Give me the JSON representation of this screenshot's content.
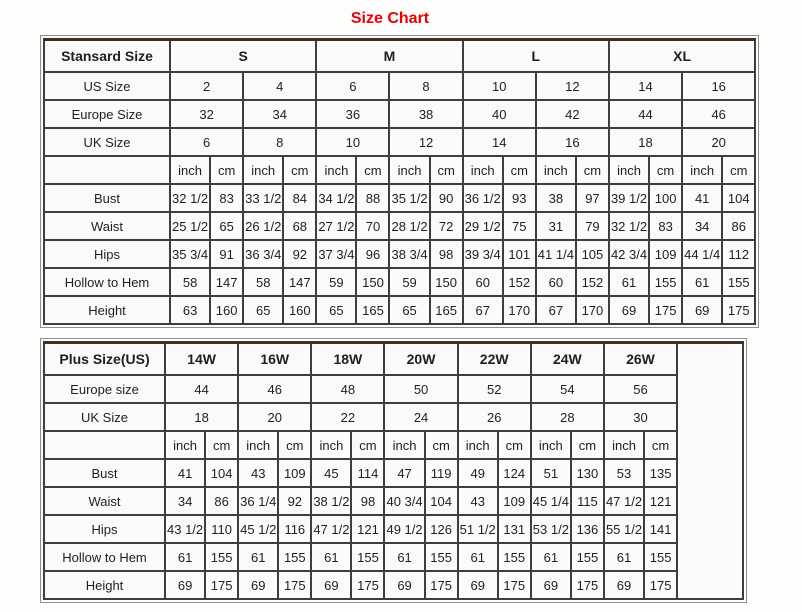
{
  "page": {
    "title": "Size Chart",
    "title_color": "#ee0000",
    "border_color": "#3e3e3e"
  },
  "tables": [
    {
      "name": "standard-size-table",
      "corner_label": "Stansard Size",
      "groups": [
        {
          "label": "S",
          "span": 2
        },
        {
          "label": "M",
          "span": 2
        },
        {
          "label": "L",
          "span": 2
        },
        {
          "label": "XL",
          "span": 2
        }
      ],
      "size_rows": [
        {
          "label": "US Size",
          "bold": true,
          "values": [
            "2",
            "4",
            "6",
            "8",
            "10",
            "12",
            "14",
            "16"
          ]
        },
        {
          "label": "Europe Size",
          "bold": false,
          "values": [
            "32",
            "34",
            "36",
            "38",
            "40",
            "42",
            "44",
            "46"
          ]
        },
        {
          "label": "UK Size",
          "bold": false,
          "values": [
            "6",
            "8",
            "10",
            "12",
            "14",
            "16",
            "18",
            "20"
          ]
        }
      ],
      "units": [
        "inch",
        "cm"
      ],
      "pairs": 8,
      "measure_rows": [
        {
          "label": "Bust",
          "values": [
            "32 1/2",
            "83",
            "33 1/2",
            "84",
            "34 1/2",
            "88",
            "35 1/2",
            "90",
            "36 1/2",
            "93",
            "38",
            "97",
            "39 1/2",
            "100",
            "41",
            "104"
          ]
        },
        {
          "label": "Waist",
          "values": [
            "25 1/2",
            "65",
            "26 1/2",
            "68",
            "27 1/2",
            "70",
            "28 1/2",
            "72",
            "29 1/2",
            "75",
            "31",
            "79",
            "32 1/2",
            "83",
            "34",
            "86"
          ]
        },
        {
          "label": "Hips",
          "values": [
            "35 3/4",
            "91",
            "36 3/4",
            "92",
            "37 3/4",
            "96",
            "38 3/4",
            "98",
            "39 3/4",
            "101",
            "41 1/4",
            "105",
            "42 3/4",
            "109",
            "44 1/4",
            "112"
          ]
        },
        {
          "label": "Hollow to Hem",
          "values": [
            "58",
            "147",
            "58",
            "147",
            "59",
            "150",
            "59",
            "150",
            "60",
            "152",
            "60",
            "152",
            "61",
            "155",
            "61",
            "155"
          ]
        },
        {
          "label": "Height",
          "values": [
            "63",
            "160",
            "65",
            "160",
            "65",
            "165",
            "65",
            "165",
            "67",
            "170",
            "67",
            "170",
            "69",
            "175",
            "69",
            "175"
          ]
        }
      ],
      "trailing_empty_col": false
    },
    {
      "name": "plus-size-table",
      "corner_label": "Plus Size(US)",
      "groups": [
        {
          "label": "14W",
          "span": 1
        },
        {
          "label": "16W",
          "span": 1
        },
        {
          "label": "18W",
          "span": 1
        },
        {
          "label": "20W",
          "span": 1
        },
        {
          "label": "22W",
          "span": 1
        },
        {
          "label": "24W",
          "span": 1
        },
        {
          "label": "26W",
          "span": 1
        }
      ],
      "size_rows": [
        {
          "label": "Europe size",
          "bold": false,
          "values": [
            "44",
            "46",
            "48",
            "50",
            "52",
            "54",
            "56"
          ]
        },
        {
          "label": "UK Size",
          "bold": false,
          "values": [
            "18",
            "20",
            "22",
            "24",
            "26",
            "28",
            "30"
          ]
        }
      ],
      "units": [
        "inch",
        "cm"
      ],
      "pairs": 7,
      "measure_rows": [
        {
          "label": "Bust",
          "values": [
            "41",
            "104",
            "43",
            "109",
            "45",
            "114",
            "47",
            "119",
            "49",
            "124",
            "51",
            "130",
            "53",
            "135"
          ]
        },
        {
          "label": "Waist",
          "values": [
            "34",
            "86",
            "36 1/4",
            "92",
            "38 1/2",
            "98",
            "40 3/4",
            "104",
            "43",
            "109",
            "45 1/4",
            "115",
            "47 1/2",
            "121"
          ]
        },
        {
          "label": "Hips",
          "values": [
            "43 1/2",
            "110",
            "45 1/2",
            "116",
            "47 1/2",
            "121",
            "49 1/2",
            "126",
            "51 1/2",
            "131",
            "53 1/2",
            "136",
            "55 1/2",
            "141"
          ]
        },
        {
          "label": "Hollow to Hem",
          "values": [
            "61",
            "155",
            "61",
            "155",
            "61",
            "155",
            "61",
            "155",
            "61",
            "155",
            "61",
            "155",
            "61",
            "155"
          ]
        },
        {
          "label": "Height",
          "values": [
            "69",
            "175",
            "69",
            "175",
            "69",
            "175",
            "69",
            "175",
            "69",
            "175",
            "69",
            "175",
            "69",
            "175"
          ]
        }
      ],
      "trailing_empty_col": true
    }
  ]
}
